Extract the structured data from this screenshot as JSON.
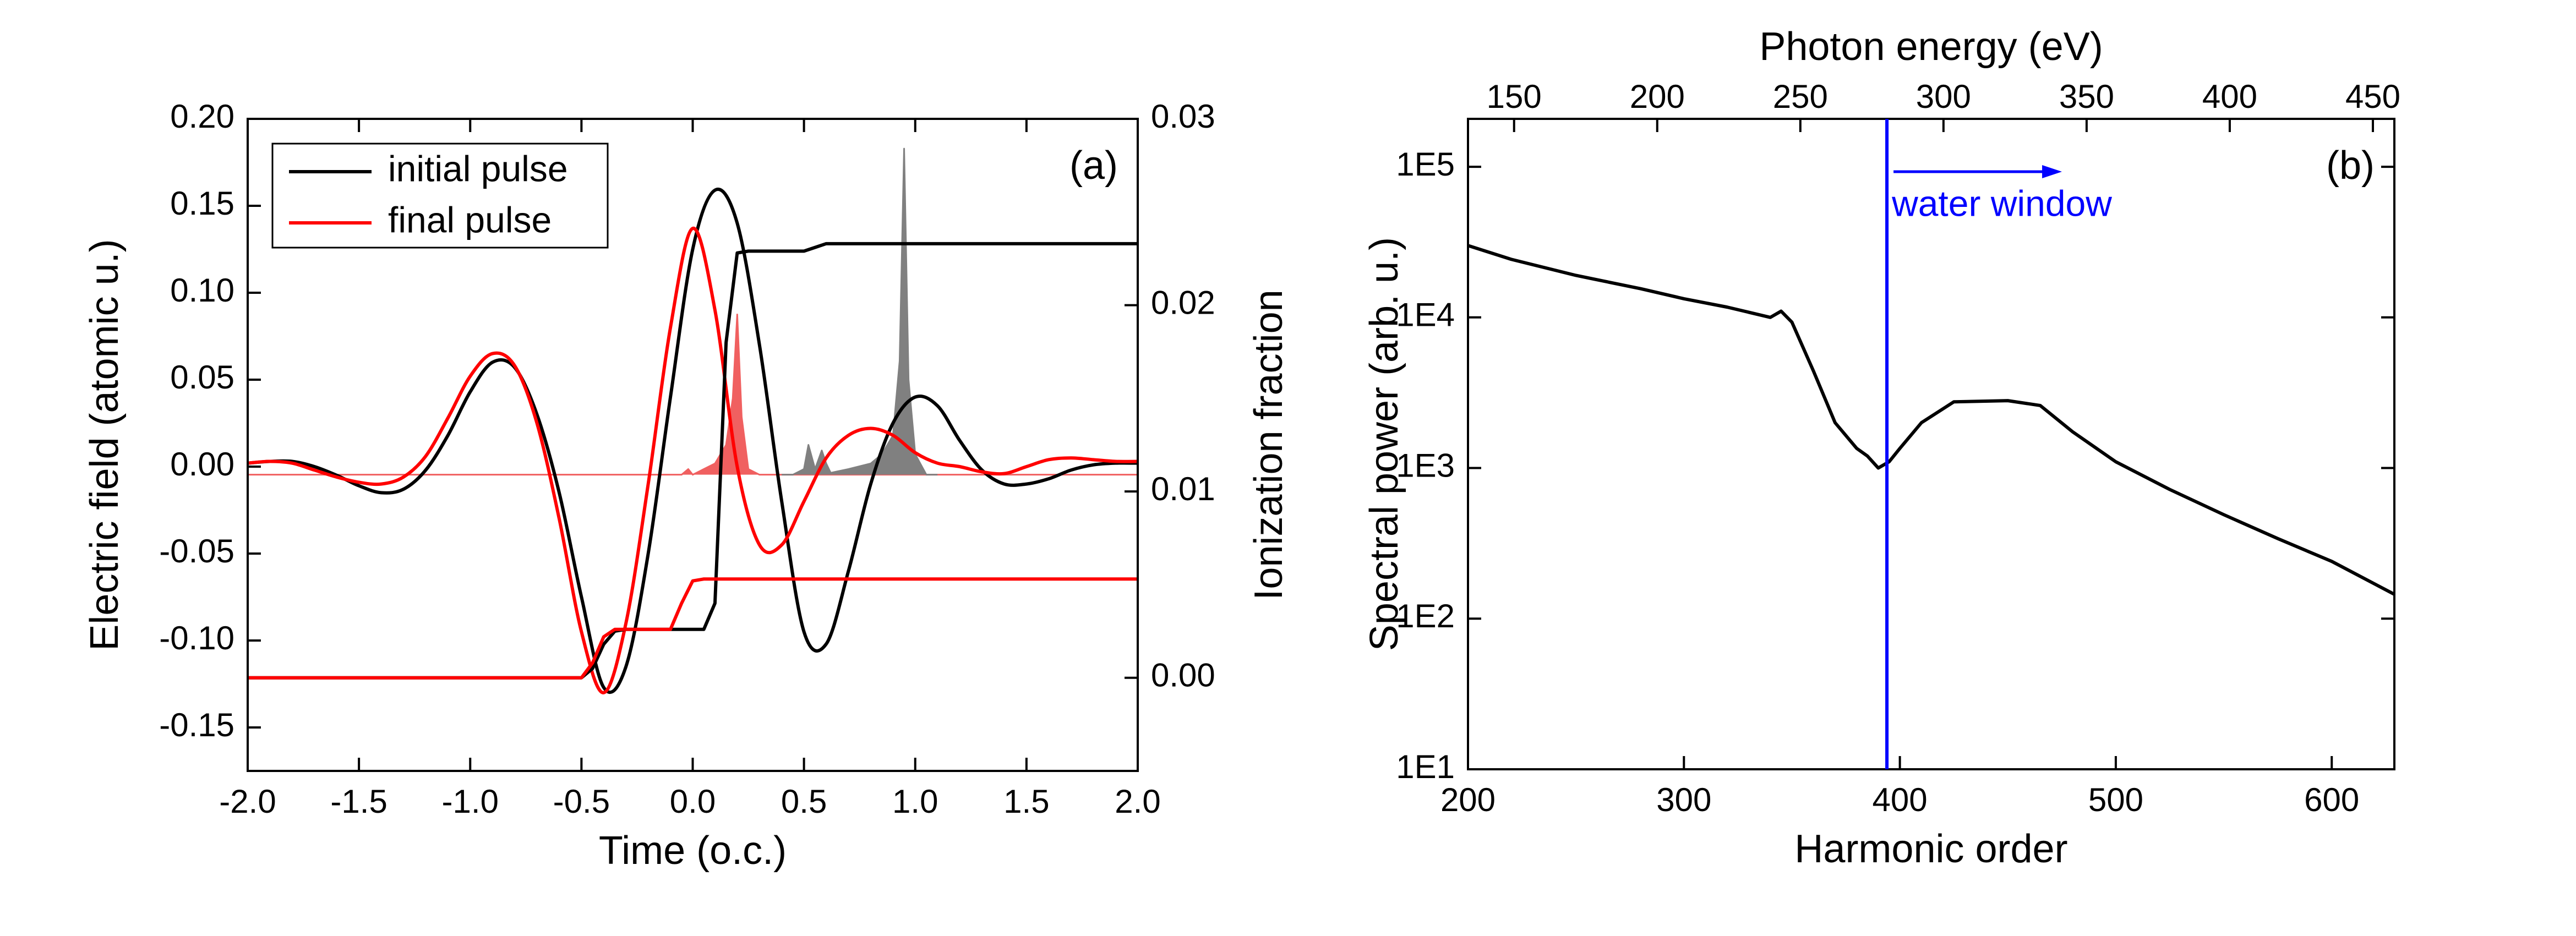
{
  "chart_data": [
    {
      "type": "line",
      "panel_label": "(a)",
      "xlabel": "Time (o.c.)",
      "ylabel": "Electric field (atomic u.)",
      "y2label": "Ionization fraction",
      "xlim": [
        -2,
        2
      ],
      "xticks": [
        {
          "value": -2,
          "label": "-2.0"
        },
        -1.5,
        {
          "value": -1,
          "label": "-1.0"
        },
        -0.5,
        {
          "value": 0,
          "label": "0.0"
        },
        0.5,
        {
          "value": 1,
          "label": "1.0"
        },
        1.5,
        {
          "value": 2,
          "label": "2.0"
        }
      ],
      "ylim": [
        -0.175,
        0.2
      ],
      "yticks": [
        -0.15,
        {
          "value": -0.1,
          "label": "-0.10"
        },
        -0.05,
        {
          "value": 0,
          "label": "0.00"
        },
        0.05,
        {
          "value": 0.1,
          "label": "0.10"
        },
        0.15,
        {
          "value": 0.2,
          "label": "0.20"
        }
      ],
      "y2lim": [
        -0.005,
        0.03
      ],
      "y2ticks": [
        {
          "value": 0,
          "label": "0.00"
        },
        0.01,
        0.02,
        0.03
      ],
      "legend": "upper left",
      "x": [
        -2.0,
        -1.9,
        -1.8,
        -1.7,
        -1.6,
        -1.5,
        -1.4,
        -1.3,
        -1.2,
        -1.1,
        -1.0,
        -0.9,
        -0.8,
        -0.7,
        -0.6,
        -0.5,
        -0.4,
        -0.3,
        -0.2,
        -0.1,
        0.0,
        0.1,
        0.2,
        0.3,
        0.4,
        0.5,
        0.6,
        0.7,
        0.8,
        0.9,
        1.0,
        1.1,
        1.2,
        1.3,
        1.4,
        1.5,
        1.6,
        1.7,
        1.8,
        1.9,
        2.0
      ],
      "series": [
        {
          "color": "#f06060",
          "axis": "y2",
          "fill": true,
          "x": [
            -2,
            -0.05,
            -0.02,
            0,
            0.05,
            0.1,
            0.15,
            0.18,
            0.2,
            0.22,
            0.25,
            0.3,
            2
          ],
          "values": [
            0.0109,
            0.0109,
            0.0112,
            0.0109,
            0.0112,
            0.0115,
            0.0125,
            0.015,
            0.0195,
            0.014,
            0.0112,
            0.0109,
            0.0109
          ]
        },
        {
          "color": "#808080",
          "axis": "y2",
          "fill": true,
          "x": [
            0.4,
            0.45,
            0.5,
            0.52,
            0.55,
            0.58,
            0.6,
            0.62,
            0.7,
            0.8,
            0.85,
            0.9,
            0.93,
            0.95,
            0.97,
            1.0,
            1.05,
            1.1
          ],
          "values": [
            0.0109,
            0.0109,
            0.0112,
            0.0125,
            0.0112,
            0.0122,
            0.0115,
            0.011,
            0.0112,
            0.0115,
            0.012,
            0.013,
            0.017,
            0.0284,
            0.016,
            0.012,
            0.0109,
            0.0109
          ]
        },
        {
          "name": "initial pulse",
          "color": "#000000",
          "smooth": true,
          "values": [
            0.002,
            0.003,
            0.003,
            0.0,
            -0.005,
            -0.011,
            -0.015,
            -0.013,
            -0.002,
            0.018,
            0.043,
            0.06,
            0.057,
            0.03,
            -0.015,
            -0.075,
            -0.127,
            -0.115,
            -0.05,
            0.04,
            0.125,
            0.159,
            0.14,
            0.07,
            -0.02,
            -0.095,
            -0.102,
            -0.06,
            -0.01,
            0.025,
            0.04,
            0.035,
            0.015,
            -0.002,
            -0.01,
            -0.01,
            -0.007,
            -0.002,
            0.001,
            0.002,
            0.002
          ]
        },
        {
          "name": "final pulse",
          "color": "#ff0000",
          "smooth": true,
          "values": [
            0.002,
            0.003,
            0.002,
            -0.002,
            -0.006,
            -0.009,
            -0.01,
            -0.006,
            0.006,
            0.028,
            0.052,
            0.065,
            0.058,
            0.025,
            -0.03,
            -0.095,
            -0.13,
            -0.09,
            -0.01,
            0.08,
            0.137,
            0.09,
            0.0,
            -0.045,
            -0.045,
            -0.02,
            0.005,
            0.018,
            0.022,
            0.018,
            0.008,
            0.002,
            0.0,
            -0.003,
            -0.004,
            0.0,
            0.004,
            0.005,
            0.004,
            0.003,
            0.003
          ]
        },
        {
          "color": "#000000",
          "axis": "y2",
          "x": [
            -2,
            -0.5,
            -0.45,
            -0.4,
            -0.35,
            -0.3,
            0.05,
            0.1,
            0.15,
            0.2,
            0.25,
            0.5,
            0.55,
            0.6,
            2
          ],
          "values": [
            0,
            0,
            0.0005,
            0.0018,
            0.0025,
            0.0026,
            0.0026,
            0.004,
            0.018,
            0.0228,
            0.0229,
            0.0229,
            0.0231,
            0.0233,
            0.0233
          ]
        },
        {
          "color": "#ff0000",
          "axis": "y2",
          "x": [
            -2,
            -0.5,
            -0.45,
            -0.4,
            -0.35,
            -0.1,
            -0.05,
            0,
            0.05,
            2
          ],
          "values": [
            0,
            0,
            0.0008,
            0.0022,
            0.0026,
            0.0026,
            0.004,
            0.0052,
            0.0053,
            0.0053
          ]
        }
      ]
    },
    {
      "type": "line",
      "panel_label": "(b)",
      "xlabel": "Harmonic order",
      "ylabel": "Spectral power (arb. u.)",
      "x2label": "Photon energy (eV)",
      "xlim": [
        200,
        629
      ],
      "xticks": [
        200,
        300,
        400,
        500,
        600
      ],
      "x2lim": [
        133.9,
        457.5
      ],
      "x2ticks": [
        150,
        200,
        250,
        300,
        350,
        400,
        450
      ],
      "yscale": "log",
      "ylim": [
        10,
        208000
      ],
      "yticks": [
        {
          "value": 10,
          "label": "1E1"
        },
        {
          "value": 100,
          "label": "1E2"
        },
        {
          "value": 1000,
          "label": "1E3"
        },
        {
          "value": 10000,
          "label": "1E4"
        },
        {
          "value": 100000,
          "label": "1E5"
        }
      ],
      "vline": {
        "x": 394,
        "color": "#0000ff",
        "label": "water window"
      },
      "series": [
        {
          "color": "#000000",
          "x": [
            200,
            220,
            250,
            280,
            300,
            320,
            340,
            345,
            350,
            360,
            370,
            380,
            385,
            390,
            395,
            400,
            410,
            425,
            450,
            465,
            480,
            500,
            525,
            550,
            575,
            600,
            629
          ],
          "values": [
            30000,
            24300,
            19000,
            15500,
            13300,
            11700,
            10000,
            11000,
            9300,
            4400,
            2000,
            1350,
            1200,
            1000,
            1100,
            1350,
            2000,
            2750,
            2800,
            2600,
            1740,
            1100,
            720,
            490,
            340,
            240,
            145
          ]
        }
      ]
    }
  ]
}
